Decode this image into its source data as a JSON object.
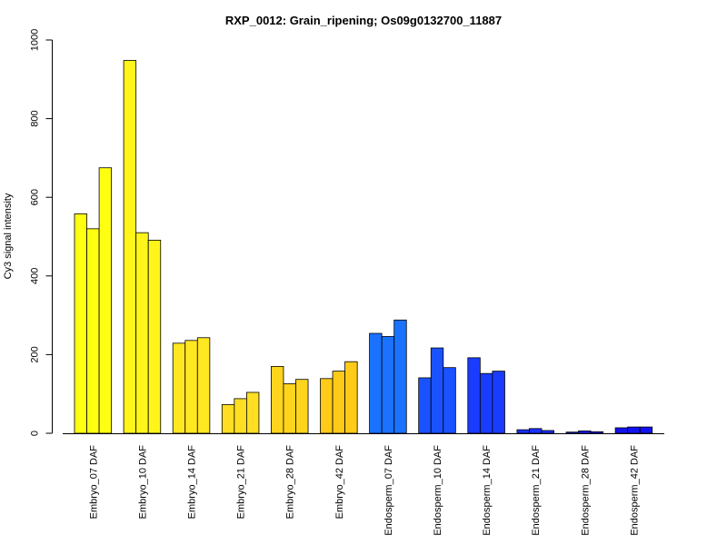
{
  "chart_data": {
    "type": "bar",
    "title": "RXP_0012: Grain_ripening; Os09g0132700_11887",
    "xlabel": "",
    "ylabel": "Cy3 signal intensity",
    "ylim": [
      0,
      1000
    ],
    "yticks": [
      0,
      200,
      400,
      600,
      800,
      1000
    ],
    "grid": false,
    "categories": [
      "Embryo_07 DAF",
      "Embryo_10 DAF",
      "Embryo_14 DAF",
      "Embryo_21 DAF",
      "Embryo_28 DAF",
      "Embryo_42 DAF",
      "Endosperm_07 DAF",
      "Endosperm_10 DAF",
      "Endosperm_14 DAF",
      "Endosperm_21 DAF",
      "Endosperm_28 DAF",
      "Endosperm_42 DAF"
    ],
    "group_colors": [
      "#ffff12",
      "#fff51a",
      "#ffe722",
      "#ffde24",
      "#ffd41c",
      "#ffca18",
      "#1a72ff",
      "#1a52ff",
      "#1a3cff",
      "#1a30ff",
      "#1a1aff",
      "#1212f0"
    ],
    "values": [
      [
        558,
        520,
        675
      ],
      [
        948,
        510,
        491
      ],
      [
        229,
        236,
        243
      ],
      [
        73,
        88,
        104
      ],
      [
        170,
        126,
        137
      ],
      [
        139,
        158,
        182
      ],
      [
        254,
        246,
        288
      ],
      [
        141,
        217,
        167
      ],
      [
        192,
        152,
        158
      ],
      [
        9,
        12,
        7
      ],
      [
        3,
        6,
        4
      ],
      [
        14,
        16,
        16
      ]
    ]
  }
}
